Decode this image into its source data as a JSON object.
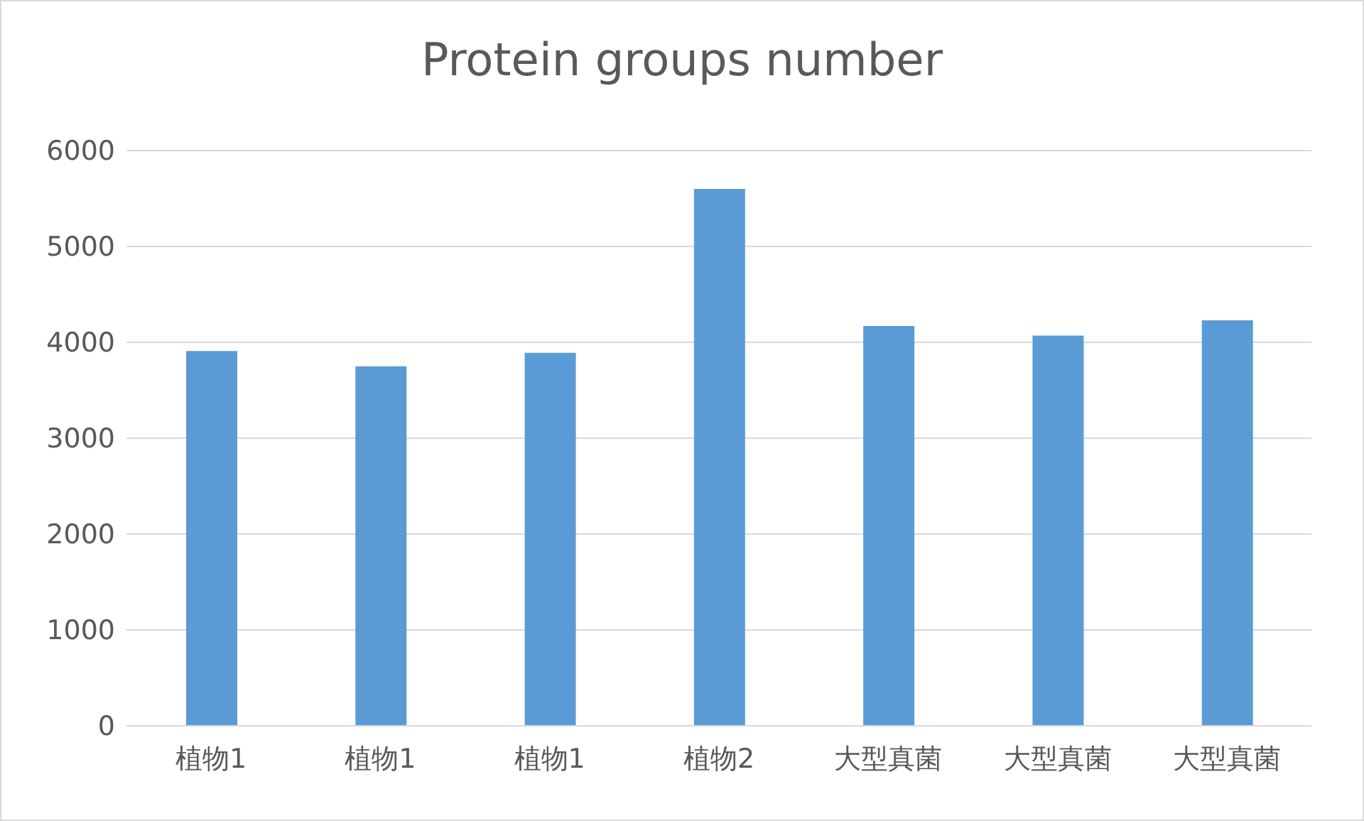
{
  "chart_data": {
    "type": "bar",
    "title": "Protein groups number",
    "categories": [
      "植物1",
      "植物1",
      "植物1",
      "植物2",
      "大型真菌",
      "大型真菌",
      "大型真菌"
    ],
    "values": [
      3910,
      3750,
      3890,
      5600,
      4170,
      4070,
      4230
    ],
    "color": "#5b9bd5",
    "ylim": [
      0,
      6000
    ],
    "yticks": [
      0,
      1000,
      2000,
      3000,
      4000,
      5000,
      6000
    ],
    "grid": "y"
  }
}
